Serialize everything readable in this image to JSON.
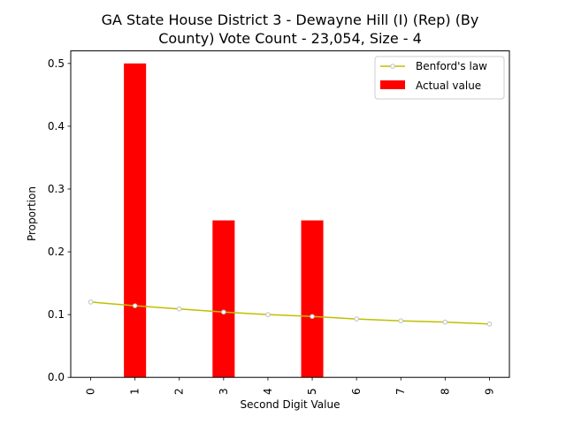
{
  "chart_data": {
    "type": "bar",
    "title_line1": "GA State House District 3 - Dewayne Hill (I) (Rep) (By",
    "title_line2": "County) Vote Count - 23,054, Size - 4",
    "xlabel": "Second Digit Value",
    "ylabel": "Proportion",
    "categories": [
      "0",
      "1",
      "2",
      "3",
      "4",
      "5",
      "6",
      "7",
      "8",
      "9"
    ],
    "ylim": [
      0,
      0.52
    ],
    "yticks": [
      "0.0",
      "0.1",
      "0.2",
      "0.3",
      "0.4",
      "0.5"
    ],
    "grid": false,
    "legend_position": "top-right",
    "series": [
      {
        "name": "Benford's law",
        "kind": "line",
        "color": "#bfbf00",
        "marker_color": "#bfbfbf",
        "values": [
          0.12,
          0.114,
          0.109,
          0.104,
          0.1,
          0.097,
          0.093,
          0.09,
          0.088,
          0.085
        ]
      },
      {
        "name": "Actual value",
        "kind": "bar",
        "color": "#ff0000",
        "values": [
          0,
          0.5,
          0,
          0.25,
          0,
          0.25,
          0,
          0,
          0,
          0
        ]
      }
    ]
  }
}
